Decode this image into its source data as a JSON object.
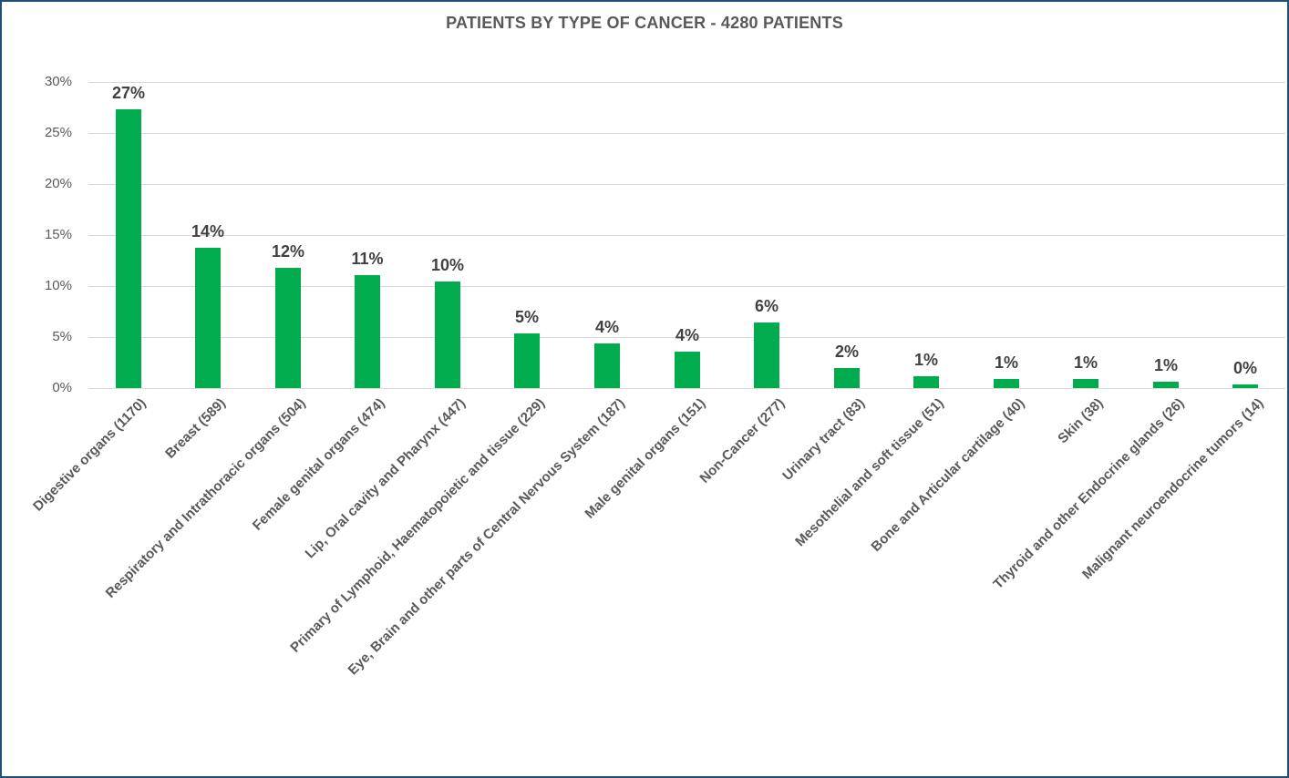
{
  "chart_data": {
    "type": "bar",
    "title": "PATIENTS BY TYPE OF CANCER - 4280 PATIENTS",
    "total_patients": 4280,
    "categories": [
      "Digestive organs (1170)",
      "Breast (589)",
      "Respiratory and Intrathoracic organs (504)",
      "Female genital organs (474)",
      "Lip, Oral cavity and Pharynx (447)",
      "Primary of Lymphoid, Haematopoietic and  tissue (229)",
      "Eye, Brain and other parts of Central Nervous System (187)",
      "Male genital organs (151)",
      "Non-Cancer (277)",
      "Urinary tract (83)",
      "Mesothelial and soft tissue (51)",
      "Bone and Articular cartilage (40)",
      "Skin (38)",
      "Thyroid and other Endocrine glands (26)",
      "Malignant neuroendocrine tumors (14)"
    ],
    "counts": [
      1170,
      589,
      504,
      474,
      447,
      229,
      187,
      151,
      277,
      83,
      51,
      40,
      38,
      26,
      14
    ],
    "values_pct": [
      27.34,
      13.76,
      11.78,
      11.07,
      10.44,
      5.35,
      4.37,
      3.53,
      6.47,
      1.94,
      1.19,
      0.93,
      0.89,
      0.61,
      0.33
    ],
    "value_labels": [
      "27%",
      "14%",
      "12%",
      "11%",
      "10%",
      "5%",
      "4%",
      "4%",
      "6%",
      "2%",
      "1%",
      "1%",
      "1%",
      "1%",
      "0%"
    ],
    "y_ticks": [
      "30%",
      "25%",
      "20%",
      "15%",
      "10%",
      "5%",
      "0%"
    ],
    "ylim": [
      0,
      30
    ],
    "xlabel": "",
    "ylabel": "",
    "grid": true,
    "legend": "none",
    "colors": {
      "bar": "#00AC4E",
      "frame_border": "#1F4E79",
      "gridline": "#D9D9D9",
      "title_text": "#595959",
      "axis_text": "#595959",
      "data_label_text": "#404040"
    }
  }
}
